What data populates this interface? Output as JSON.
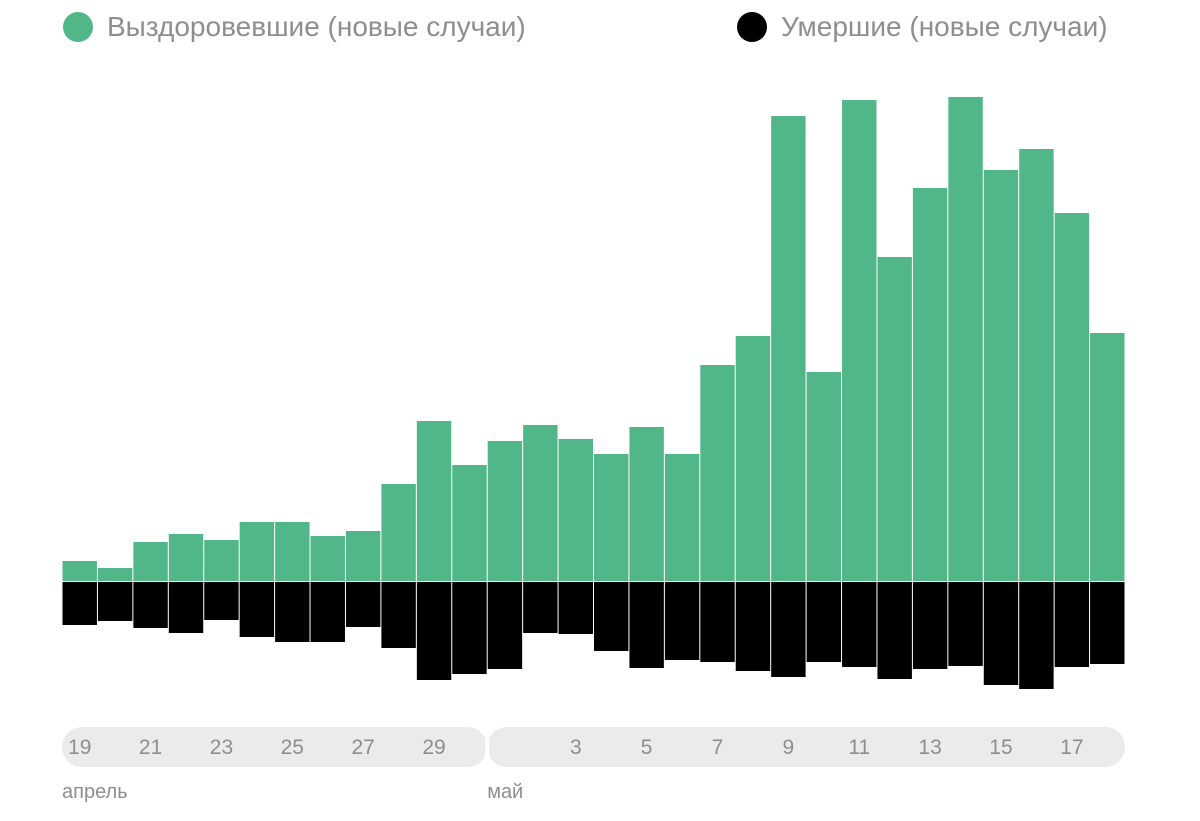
{
  "chart_data": {
    "type": "bar",
    "subtype": "diverging",
    "title": "",
    "legend": [
      {
        "label": "Выздоровевшие (новые случаи)",
        "color": "#52b788",
        "position": "top-left"
      },
      {
        "label": "Умершие (новые случаи)",
        "color": "#000000",
        "position": "top-right"
      }
    ],
    "categories": [
      "19",
      "20",
      "21",
      "22",
      "23",
      "24",
      "25",
      "26",
      "27",
      "28",
      "29",
      "30",
      "1",
      "2",
      "3",
      "4",
      "5",
      "6",
      "7",
      "8",
      "9",
      "10",
      "11",
      "12",
      "13",
      "14",
      "15",
      "16",
      "17",
      "18"
    ],
    "tick_labels": [
      "19",
      "21",
      "23",
      "25",
      "27",
      "29",
      "3",
      "5",
      "7",
      "9",
      "11",
      "13",
      "15",
      "17"
    ],
    "months": [
      {
        "label": "апрель",
        "start_index": 0,
        "end_index": 11
      },
      {
        "label": "май",
        "start_index": 12,
        "end_index": 29
      }
    ],
    "series": [
      {
        "name": "Выздоровевшие (новые случаи)",
        "direction": "up",
        "color": "#52b788",
        "values": [
          20,
          13,
          39,
          47,
          41,
          59,
          59,
          45,
          50,
          97,
          160,
          116,
          140,
          156,
          142,
          127,
          154,
          127,
          216,
          245,
          465,
          209,
          481,
          324,
          393,
          484,
          411,
          432,
          368,
          248
        ]
      },
      {
        "name": "Умершие (новые случаи)",
        "direction": "down",
        "color": "#000000",
        "values": [
          43,
          39,
          46,
          51,
          38,
          55,
          60,
          60,
          45,
          66,
          98,
          92,
          87,
          51,
          52,
          69,
          86,
          78,
          80,
          89,
          95,
          80,
          85,
          97,
          87,
          84,
          103,
          107,
          85,
          82
        ]
      }
    ],
    "xlabel": "",
    "ylabel": "",
    "grid": false
  }
}
